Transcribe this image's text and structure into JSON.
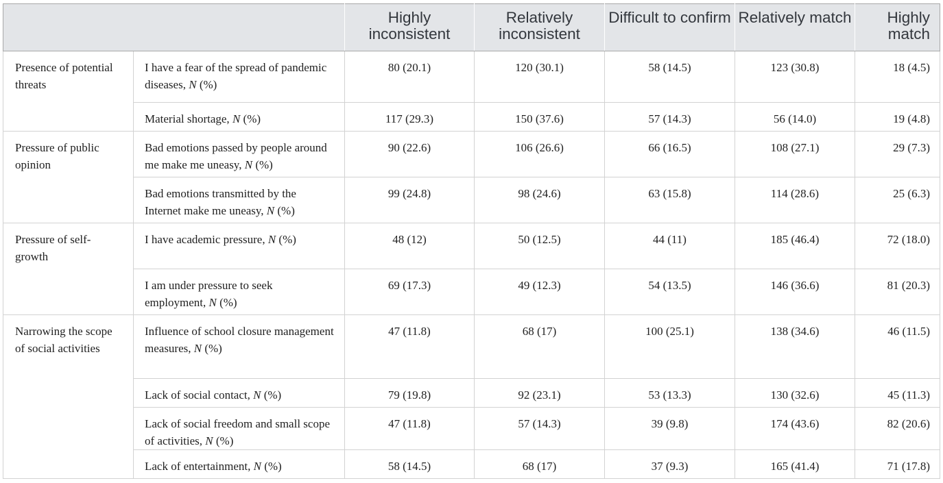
{
  "header": {
    "columns": [
      "Highly inconsistent",
      "Relatively inconsistent",
      "Difficult to confirm",
      "Relatively match",
      "Highly match"
    ]
  },
  "n_suffix": {
    "n": "N",
    "pct": "(%)"
  },
  "groups": [
    {
      "category": "Presence of potential threats",
      "rows": [
        {
          "label": "I have a fear of the spread of pandemic diseases,",
          "values": [
            "80 (20.1)",
            "120 (30.1)",
            "58 (14.5)",
            "123 (30.8)",
            "18 (4.5)"
          ]
        },
        {
          "label": "Material shortage,",
          "values": [
            "117 (29.3)",
            "150 (37.6)",
            "57 (14.3)",
            "56 (14.0)",
            "19 (4.8)"
          ]
        }
      ]
    },
    {
      "category": "Pressure of public opinion",
      "rows": [
        {
          "label": "Bad emotions passed by people around me make me uneasy,",
          "values": [
            "90 (22.6)",
            "106 (26.6)",
            "66 (16.5)",
            "108 (27.1)",
            "29 (7.3)"
          ]
        },
        {
          "label": "Bad emotions transmitted by the Internet make me uneasy,",
          "values": [
            "99 (24.8)",
            "98 (24.6)",
            "63 (15.8)",
            "114 (28.6)",
            "25 (6.3)"
          ]
        }
      ]
    },
    {
      "category": "Pressure of self-growth",
      "rows": [
        {
          "label": "I have academic pressure,",
          "values": [
            "48 (12)",
            "50 (12.5)",
            "44 (11)",
            "185 (46.4)",
            "72 (18.0)"
          ]
        },
        {
          "label": "I am under pressure to seek employment,",
          "values": [
            "69 (17.3)",
            "49 (12.3)",
            "54 (13.5)",
            "146 (36.6)",
            "81 (20.3)"
          ]
        }
      ]
    },
    {
      "category": "Narrowing the scope of social activities",
      "rows": [
        {
          "label": "Influence of school closure management measures,",
          "values": [
            "47 (11.8)",
            "68 (17)",
            "100 (25.1)",
            "138 (34.6)",
            "46 (11.5)"
          ]
        },
        {
          "label": "Lack of social contact,",
          "values": [
            "79 (19.8)",
            "92 (23.1)",
            "53 (13.3)",
            "130 (32.6)",
            "45 (11.3)"
          ]
        },
        {
          "label": "Lack of social freedom and small scope of activities,",
          "values": [
            "47 (11.8)",
            "57 (14.3)",
            "39 (9.8)",
            "174 (43.6)",
            "82 (20.6)"
          ]
        },
        {
          "label": "Lack of entertainment,",
          "values": [
            "58 (14.5)",
            "68 (17)",
            "37 (9.3)",
            "165 (41.4)",
            "71 (17.8)"
          ]
        }
      ]
    }
  ]
}
